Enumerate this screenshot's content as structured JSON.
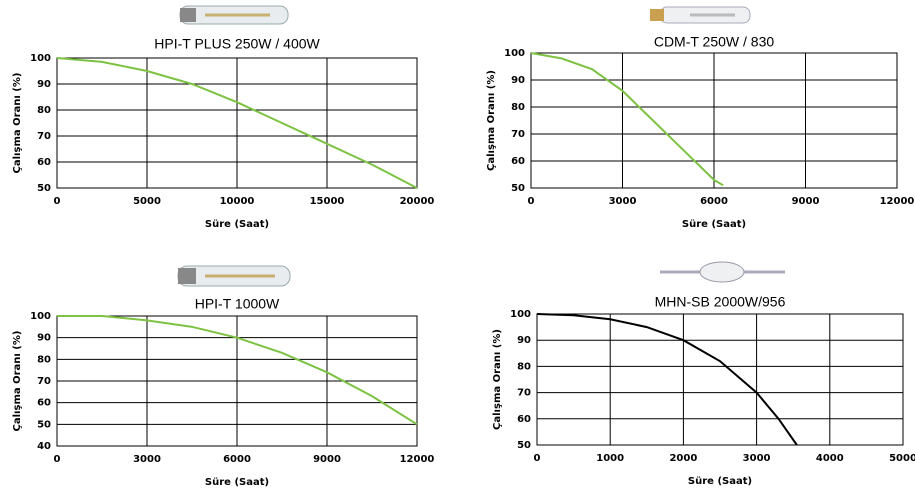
{
  "chart_data": [
    {
      "type": "line",
      "title": "HPI-T PLUS 250W / 400W",
      "x_label": "Süre (Saat)",
      "y_label": "Çalışma Oranı (%)",
      "x": [
        0,
        2500,
        5000,
        7500,
        10000,
        12500,
        15000,
        17500,
        20000
      ],
      "values": [
        100,
        98.5,
        95,
        90,
        83,
        75,
        67,
        59,
        50
      ],
      "color": "#7dc242",
      "xlim": [
        0,
        20000
      ],
      "ylim": [
        50,
        100
      ],
      "xticks": [
        0,
        5000,
        10000,
        15000,
        20000
      ],
      "yticks": [
        50,
        60,
        70,
        80,
        90,
        100
      ],
      "grid": true
    },
    {
      "type": "line",
      "title": "CDM-T 250W  / 830",
      "x_label": "Süre (Saat)",
      "y_label": "Çalışma Oranı (%)",
      "x": [
        0,
        1000,
        2000,
        3000,
        4000,
        5000,
        6000,
        6300
      ],
      "values": [
        100,
        98,
        94,
        86,
        75,
        64,
        53,
        51
      ],
      "color": "#7dc242",
      "xlim": [
        0,
        12000
      ],
      "ylim": [
        50,
        100
      ],
      "xticks": [
        0,
        3000,
        6000,
        9000,
        12000
      ],
      "yticks": [
        50,
        60,
        70,
        80,
        90,
        100
      ],
      "grid": true
    },
    {
      "type": "line",
      "title": "HPI-T 1000W",
      "x_label": "Süre (Saat)",
      "y_label": "Çalışma Oranı (%)",
      "x": [
        0,
        1500,
        3000,
        4500,
        6000,
        7500,
        9000,
        10500,
        12000
      ],
      "values": [
        100,
        100,
        98,
        95,
        90,
        83,
        74,
        63,
        50
      ],
      "color": "#7dc242",
      "xlim": [
        0,
        12000
      ],
      "ylim": [
        40,
        100
      ],
      "xticks": [
        0,
        3000,
        6000,
        9000,
        12000
      ],
      "yticks": [
        40,
        50,
        60,
        70,
        80,
        90,
        100
      ],
      "grid": true
    },
    {
      "type": "line",
      "title": "MHN-SB 2000W/956",
      "x_label": "Süre (Saat)",
      "y_label": "Çalışma Oranı (%)",
      "x": [
        0,
        500,
        1000,
        1500,
        2000,
        2500,
        3000,
        3300,
        3550
      ],
      "values": [
        100,
        99.5,
        98,
        95,
        90,
        82,
        70,
        60,
        50
      ],
      "color": "#000000",
      "xlim": [
        0,
        5000
      ],
      "ylim": [
        50,
        100
      ],
      "xticks": [
        0,
        1000,
        2000,
        3000,
        4000,
        5000
      ],
      "yticks": [
        50,
        60,
        70,
        80,
        90,
        100
      ],
      "grid": true
    }
  ]
}
